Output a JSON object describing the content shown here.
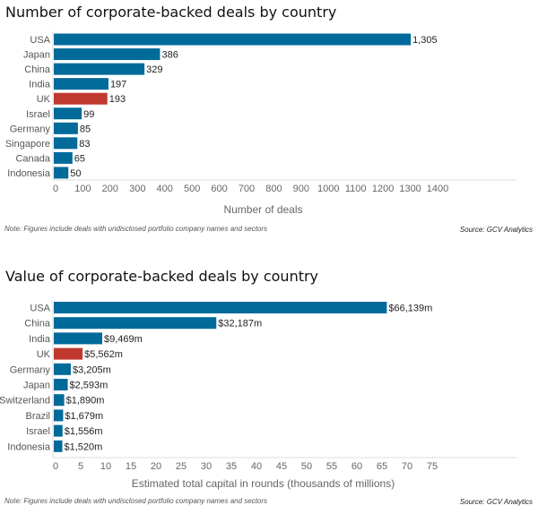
{
  "chart_data": [
    {
      "type": "bar",
      "orientation": "horizontal",
      "title": "Number of corporate-backed deals by country",
      "categories": [
        "USA",
        "Japan",
        "China",
        "India",
        "UK",
        "Israel",
        "Germany",
        "Singapore",
        "Canada",
        "Indonesia"
      ],
      "values": [
        1305,
        386,
        329,
        197,
        193,
        99,
        85,
        83,
        65,
        50
      ],
      "value_labels": [
        "1,305",
        "386",
        "329",
        "197",
        "193",
        "99",
        "85",
        "83",
        "65",
        "50"
      ],
      "highlight": "UK",
      "xlabel": "Number of deals",
      "xlim": [
        0,
        1400
      ],
      "xticks": [
        0,
        100,
        200,
        300,
        400,
        500,
        600,
        700,
        800,
        900,
        1000,
        1100,
        1200,
        1300,
        1400
      ],
      "grid": false,
      "note": "Note: Figures include deals with undisclosed portfolio company names and sectors",
      "source": "Source: GCV Analytics"
    },
    {
      "type": "bar",
      "orientation": "horizontal",
      "title": "Value of corporate-backed deals by country",
      "categories": [
        "USA",
        "China",
        "India",
        "UK",
        "Germany",
        "Japan",
        "Switzerland",
        "Brazil",
        "Israel",
        "Indonesia"
      ],
      "values": [
        66.139,
        32.187,
        9.469,
        5.562,
        3.205,
        2.593,
        1.89,
        1.679,
        1.556,
        1.52
      ],
      "value_labels": [
        "$66,139m",
        "$32,187m",
        "$9,469m",
        "$5,562m",
        "$3,205m",
        "$2,593m",
        "$1,890m",
        "$1,679m",
        "$1,556m",
        "$1,520m"
      ],
      "highlight": "UK",
      "xlabel": "Estimated total capital in rounds (thousands of millions)",
      "xlim": [
        0,
        75
      ],
      "xticks": [
        0,
        5,
        10,
        15,
        20,
        25,
        30,
        35,
        40,
        45,
        50,
        55,
        60,
        65,
        70,
        75
      ],
      "grid": false,
      "note": "Note: Figures include deals with undisclosed portfolio company names and sectors",
      "source": "Source: GCV Analytics"
    }
  ],
  "colors": {
    "bar": "#006a9a",
    "highlight": "#c0392f",
    "axis": "#dddddd"
  }
}
